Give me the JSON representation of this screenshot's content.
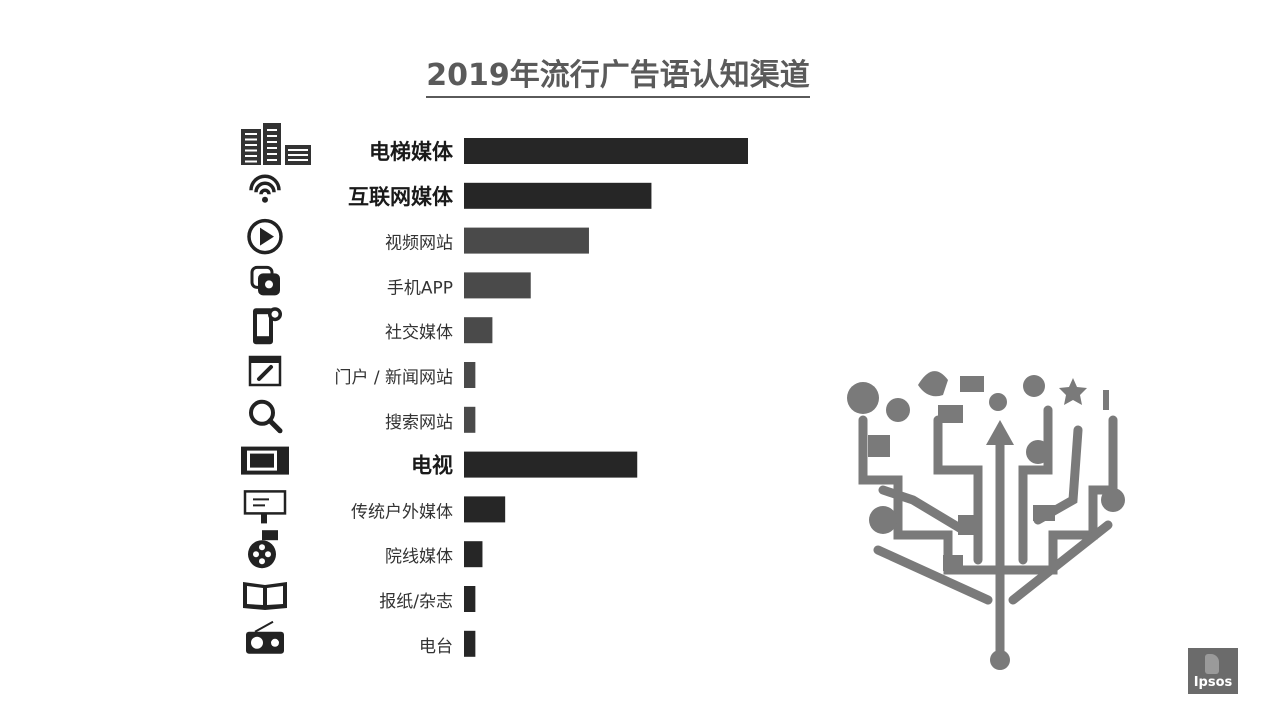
{
  "title": "2019年流行广告语认知渠道",
  "brand": "Ipsos",
  "chart_data": {
    "type": "bar",
    "orientation": "horizontal",
    "title": "2019年流行广告语认知渠道",
    "categories": [
      "电梯媒体",
      "互联网媒体",
      "视频网站",
      "手机APP",
      "社交媒体",
      "门户 / 新闻网站",
      "搜索网站",
      "电视",
      "传统户外媒体",
      "院线媒体",
      "报纸/杂志",
      "电台"
    ],
    "values": [
      100,
      66,
      44,
      23.5,
      10,
      4,
      4,
      61,
      14.5,
      6.5,
      4,
      4
    ],
    "emphasized": [
      "电梯媒体",
      "互联网媒体",
      "电视"
    ],
    "icons": [
      "buildings-icon",
      "wifi-icon",
      "play-icon",
      "app-icon",
      "social-phone-icon",
      "browser-link-icon",
      "search-icon",
      "tv-icon",
      "billboard-icon",
      "film-reel-icon",
      "book-icon",
      "radio-icon"
    ],
    "colors": {
      "bar_dark": "#262626",
      "bar_mid": "#4a4a4a",
      "label": "#333333"
    }
  }
}
